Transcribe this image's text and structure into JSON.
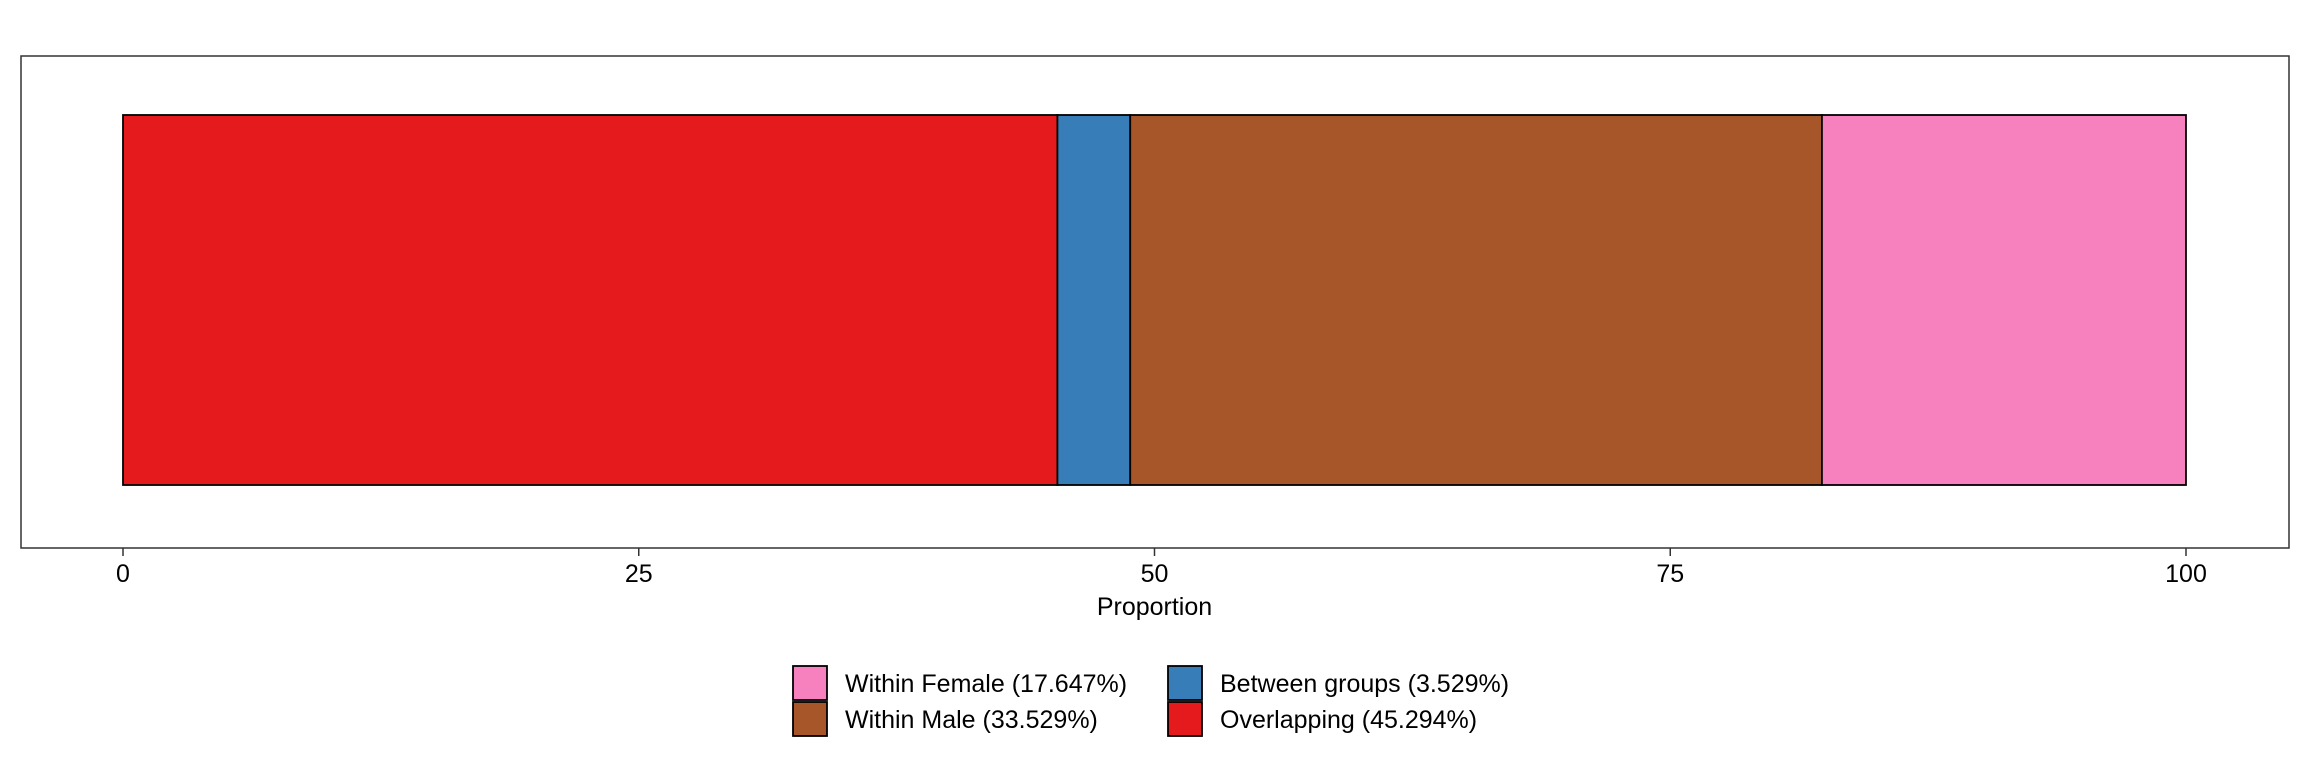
{
  "chart_data": {
    "type": "bar",
    "orientation": "horizontal-stacked",
    "title": "",
    "xlabel": "Proportion",
    "ylabel": "",
    "xlim": [
      0,
      100
    ],
    "x_ticks": [
      0,
      25,
      50,
      75,
      100
    ],
    "grid": false,
    "legend_position": "bottom",
    "series": [
      {
        "name": "Overlapping (45.294%)",
        "value": 45.294,
        "color": "#E41A1C"
      },
      {
        "name": "Between groups (3.529%)",
        "value": 3.529,
        "color": "#377EB8"
      },
      {
        "name": "Within Male (33.529%)",
        "value": 33.529,
        "color": "#A65628"
      },
      {
        "name": "Within Female (17.647%)",
        "value": 17.647,
        "color": "#F781BF"
      }
    ],
    "legend_order": [
      "Within Female (17.647%)",
      "Between groups (3.529%)",
      "Within Male (33.529%)",
      "Overlapping (45.294%)"
    ]
  }
}
